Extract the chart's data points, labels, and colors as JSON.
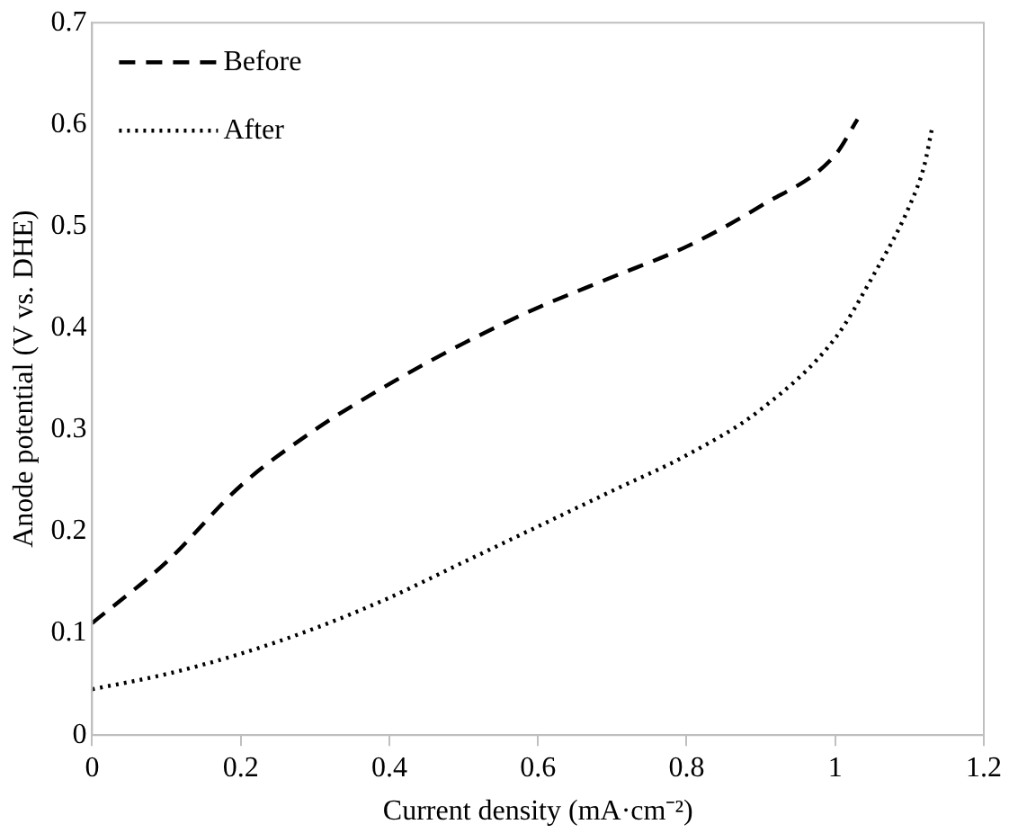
{
  "chart_data": {
    "type": "line",
    "xlabel": "Current density (mA·cm⁻²)",
    "ylabel": "Anode potential (V vs. DHE)",
    "xlim": [
      0,
      1.2
    ],
    "xticks": [
      0,
      0.2,
      0.4,
      0.6,
      0.8,
      1,
      1.2
    ],
    "ylim": [
      0,
      0.7
    ],
    "yticks": [
      0,
      0.1,
      0.2,
      0.3,
      0.4,
      0.5,
      0.6,
      0.7
    ],
    "grid": false,
    "legend": "top left",
    "marker": "none",
    "series": [
      {
        "name": "Before",
        "color": "#000000",
        "line_style": "dashed",
        "x": [
          0,
          0.1,
          0.2,
          0.3,
          0.4,
          0.5,
          0.6,
          0.7,
          0.8,
          0.9,
          1.0,
          1.03
        ],
        "values": [
          0.11,
          0.17,
          0.245,
          0.3,
          0.345,
          0.385,
          0.42,
          0.45,
          0.48,
          0.52,
          0.57,
          0.605
        ]
      },
      {
        "name": "After",
        "color": "#000000",
        "line_style": "dotted",
        "x": [
          0,
          0.1,
          0.2,
          0.3,
          0.4,
          0.5,
          0.6,
          0.7,
          0.8,
          0.9,
          1.0,
          1.05,
          1.1,
          1.12,
          1.13
        ],
        "values": [
          0.045,
          0.06,
          0.08,
          0.105,
          0.135,
          0.17,
          0.205,
          0.24,
          0.275,
          0.32,
          0.39,
          0.45,
          0.52,
          0.56,
          0.595
        ]
      }
    ]
  }
}
